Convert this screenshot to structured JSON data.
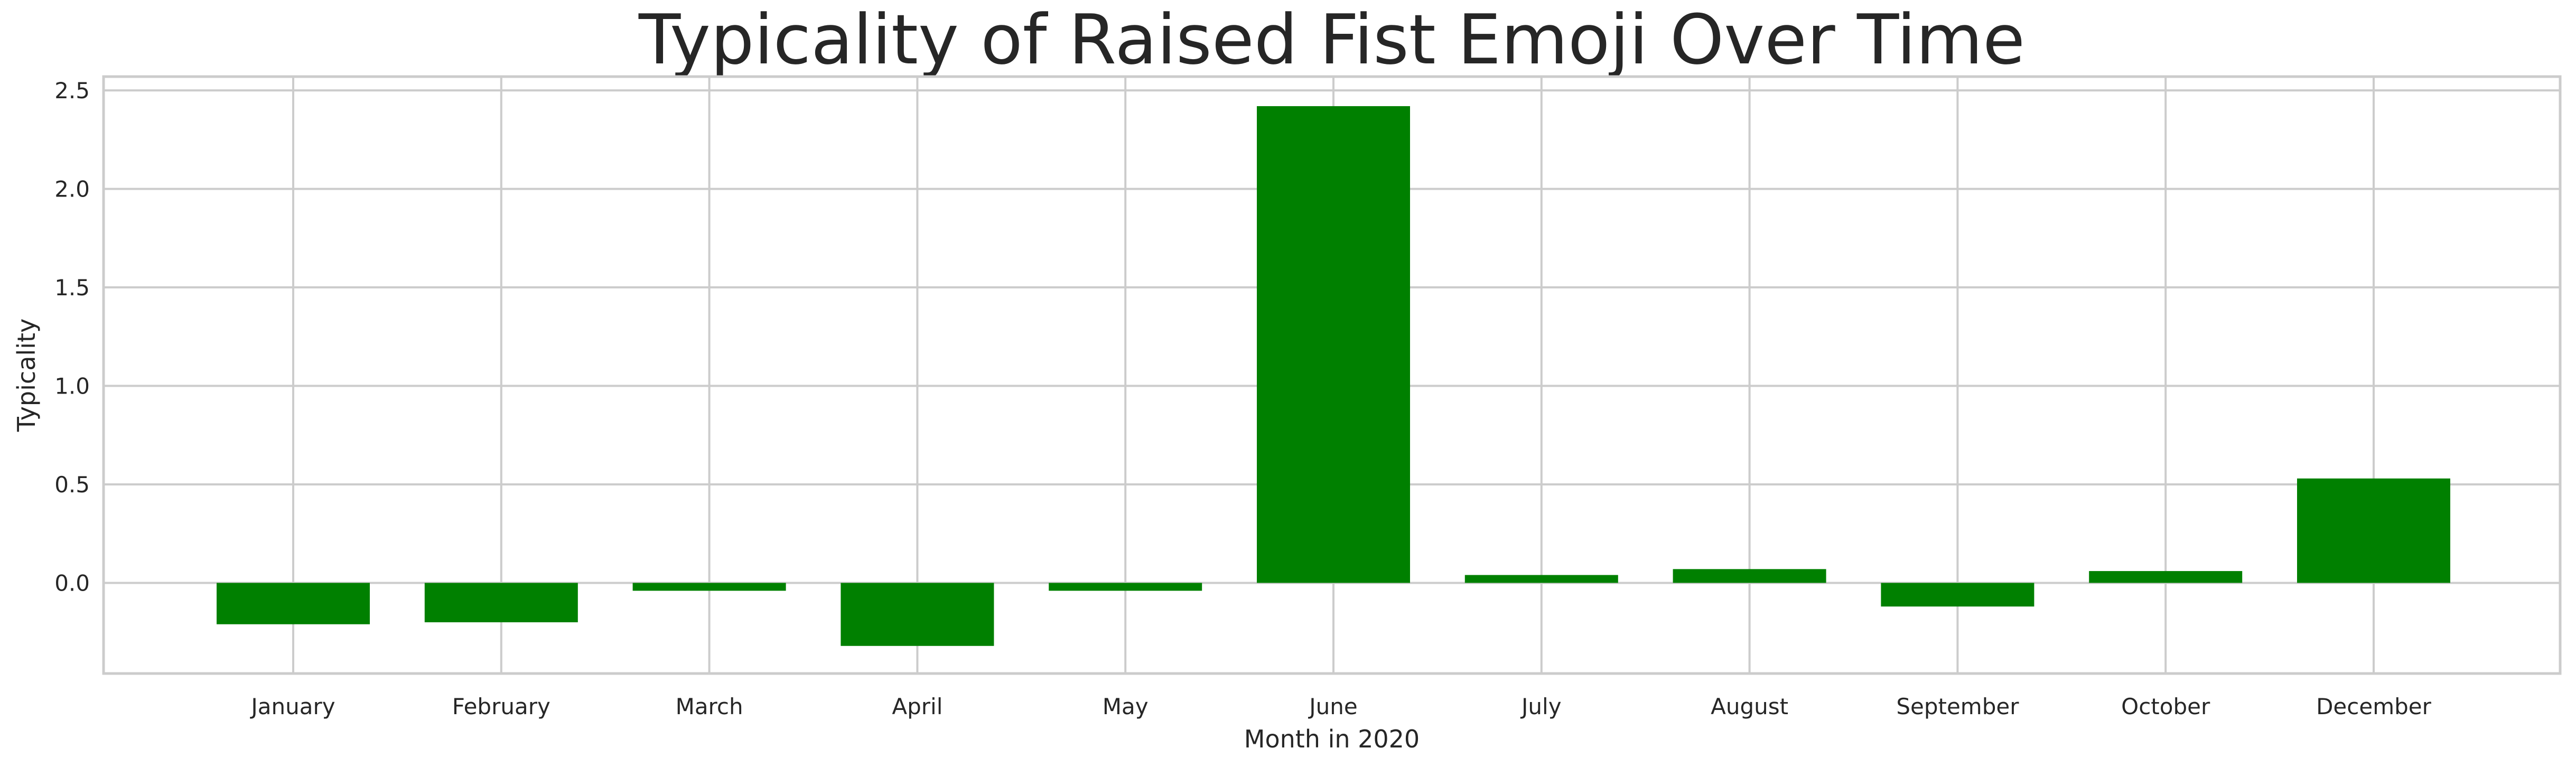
{
  "chart_data": {
    "type": "bar",
    "title": "Typicality of Raised Fist Emoji Over Time",
    "xlabel": "Month in 2020",
    "ylabel": "Typicality",
    "categories": [
      "January",
      "February",
      "March",
      "April",
      "May",
      "June",
      "July",
      "August",
      "September",
      "October",
      "December"
    ],
    "values": [
      -0.21,
      -0.2,
      -0.04,
      -0.32,
      -0.04,
      2.42,
      0.04,
      0.07,
      -0.12,
      0.06,
      0.53
    ],
    "ylim": [
      -0.46,
      2.57
    ],
    "yticks": [
      0.0,
      0.5,
      1.0,
      1.5,
      2.0,
      2.5
    ],
    "ytick_labels": [
      "0.0",
      "0.5",
      "1.0",
      "1.5",
      "2.0",
      "2.5"
    ],
    "bar_color": "#008000",
    "grid_color": "#cccccc",
    "grid": true,
    "legend": false
  }
}
